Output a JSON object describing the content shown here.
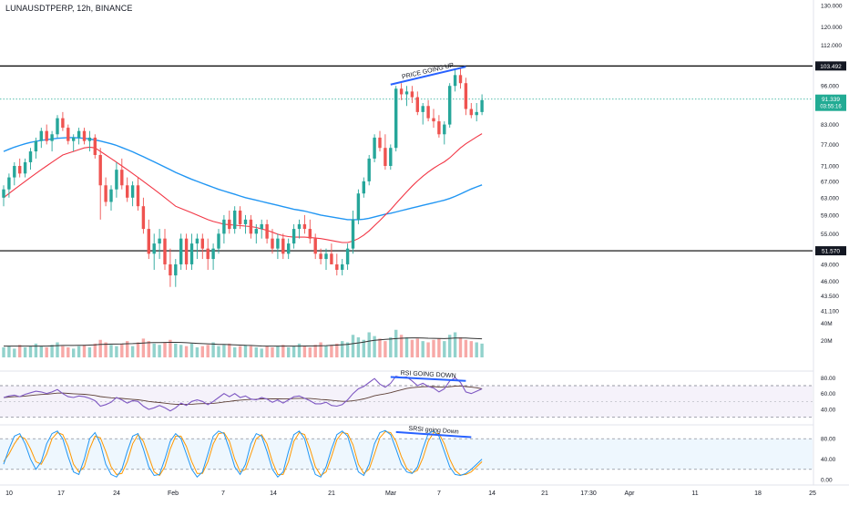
{
  "header": {
    "symbol_title": "LUNAUSDTPERP, 12h, BINANCE"
  },
  "colors": {
    "up": "#26a69a",
    "down": "#ef5350",
    "ma_short": "#f23645",
    "ma_long": "#2196f3",
    "level": "#000000",
    "annotation": "#2962ff",
    "last_price": "#22ab94",
    "rsi": "#7e57c2",
    "rsi_ma": "#5d4037",
    "stoch_k": "#2196f3",
    "stoch_d": "#ff9800",
    "volume_ma": "#333333"
  },
  "chart_data": {
    "type": "candlestick",
    "timeframe": "12h",
    "price_axis": {
      "scale": "log",
      "ticks": [
        "130.000",
        "120.000",
        "112.000",
        "103.492",
        "96.000",
        "91.339",
        "83.000",
        "77.000",
        "71.000",
        "67.000",
        "63.000",
        "59.000",
        "55.000",
        "51.570",
        "49.000",
        "46.000",
        "43.500",
        "41.100"
      ]
    },
    "price_levels": [
      {
        "label": "103.492",
        "value": 103.492
      },
      {
        "label": "51.570",
        "value": 51.57
      }
    ],
    "last_price": {
      "value": 91.339,
      "label": "91.339",
      "countdown": "03:55:16"
    },
    "x_axis": {
      "ticks": [
        "10",
        "17",
        "24",
        "Feb",
        "7",
        "14",
        "21",
        "Mar",
        "7",
        "14",
        "21",
        "17:30",
        "Apr",
        "11",
        "18",
        "25"
      ]
    },
    "candles": [
      [
        63,
        66,
        61,
        65
      ],
      [
        65,
        69,
        63,
        68
      ],
      [
        68,
        72,
        66,
        71
      ],
      [
        71,
        73,
        68,
        69
      ],
      [
        69,
        73,
        68,
        72
      ],
      [
        72,
        76,
        70,
        75
      ],
      [
        75,
        79,
        73,
        78
      ],
      [
        78,
        82,
        76,
        81
      ],
      [
        81,
        83,
        77,
        78
      ],
      [
        78,
        81,
        75,
        80
      ],
      [
        80,
        86,
        79,
        85
      ],
      [
        85,
        87,
        81,
        82
      ],
      [
        82,
        83,
        77,
        78
      ],
      [
        78,
        80,
        75,
        79
      ],
      [
        79,
        82,
        77,
        81
      ],
      [
        81,
        82,
        77,
        78
      ],
      [
        78,
        81,
        75,
        79
      ],
      [
        79,
        80,
        73,
        74
      ],
      [
        74,
        76,
        58,
        66
      ],
      [
        66,
        68,
        61,
        62
      ],
      [
        62,
        66,
        60,
        65
      ],
      [
        65,
        72,
        63,
        70
      ],
      [
        70,
        73,
        65,
        66
      ],
      [
        66,
        68,
        62,
        63
      ],
      [
        63,
        67,
        61,
        66
      ],
      [
        66,
        68,
        60,
        61
      ],
      [
        61,
        63,
        55,
        56
      ],
      [
        56,
        58,
        50,
        51
      ],
      [
        51,
        55,
        48,
        53
      ],
      [
        53,
        56,
        50,
        54
      ],
      [
        54,
        56,
        48,
        49
      ],
      [
        49,
        52,
        45,
        47
      ],
      [
        47,
        50,
        45,
        49
      ],
      [
        49,
        55,
        48,
        54
      ],
      [
        54,
        55,
        48,
        49
      ],
      [
        49,
        55,
        48,
        53
      ],
      [
        53,
        55,
        50,
        54
      ],
      [
        54,
        55,
        50,
        52
      ],
      [
        52,
        54,
        48,
        50
      ],
      [
        50,
        53,
        48,
        52
      ],
      [
        52,
        56,
        51,
        55
      ],
      [
        55,
        59,
        53,
        58
      ],
      [
        58,
        60,
        55,
        56
      ],
      [
        56,
        61,
        55,
        60
      ],
      [
        60,
        61,
        56,
        57
      ],
      [
        57,
        59,
        55,
        58
      ],
      [
        58,
        59,
        54,
        55
      ],
      [
        55,
        57,
        53,
        56
      ],
      [
        56,
        58,
        54,
        57
      ],
      [
        57,
        58,
        53,
        54
      ],
      [
        54,
        56,
        51,
        52
      ],
      [
        52,
        55,
        50,
        54
      ],
      [
        54,
        55,
        50,
        51
      ],
      [
        51,
        54,
        50,
        53
      ],
      [
        53,
        57,
        52,
        56
      ],
      [
        56,
        58,
        54,
        57
      ],
      [
        57,
        59,
        55,
        56
      ],
      [
        56,
        58,
        53,
        54
      ],
      [
        54,
        55,
        50,
        51
      ],
      [
        51,
        52,
        49,
        50
      ],
      [
        50,
        52,
        48,
        51
      ],
      [
        51,
        53,
        49,
        49
      ],
      [
        49,
        51,
        47,
        48
      ],
      [
        48,
        50,
        47,
        49
      ],
      [
        49,
        53,
        48,
        52
      ],
      [
        52,
        60,
        51,
        58
      ],
      [
        58,
        65,
        57,
        64
      ],
      [
        64,
        68,
        63,
        67
      ],
      [
        67,
        74,
        66,
        73
      ],
      [
        73,
        80,
        72,
        79
      ],
      [
        79,
        81,
        75,
        76
      ],
      [
        76,
        80,
        70,
        71
      ],
      [
        71,
        77,
        70,
        76
      ],
      [
        76,
        96,
        75,
        95
      ],
      [
        95,
        97,
        91,
        93
      ],
      [
        93,
        96,
        89,
        94
      ],
      [
        94,
        96,
        90,
        92
      ],
      [
        92,
        94,
        86,
        87
      ],
      [
        87,
        90,
        83,
        89
      ],
      [
        89,
        91,
        84,
        85
      ],
      [
        85,
        88,
        82,
        84
      ],
      [
        84,
        86,
        79,
        80
      ],
      [
        80,
        84,
        77,
        83
      ],
      [
        83,
        97,
        82,
        96
      ],
      [
        96,
        102,
        94,
        100
      ],
      [
        100,
        103,
        95,
        97
      ],
      [
        97,
        99,
        86,
        88
      ],
      [
        88,
        90,
        85,
        86
      ],
      [
        86,
        90,
        84,
        87
      ],
      [
        87,
        93,
        86,
        91
      ]
    ],
    "ma_short": [
      63,
      64,
      65,
      66,
      67,
      68,
      69,
      70,
      71,
      72,
      73,
      74,
      74.5,
      75,
      75.5,
      76,
      76.2,
      76,
      75,
      74,
      73,
      72,
      71,
      70,
      69,
      68,
      67,
      66,
      65,
      64,
      63,
      62,
      61,
      60.5,
      60,
      59.5,
      59,
      58.5,
      58,
      57.6,
      57.3,
      57,
      56.9,
      56.8,
      56.7,
      56.6,
      56.5,
      56.3,
      56,
      55.7,
      55.3,
      54.9,
      54.6,
      54.4,
      54.3,
      54.3,
      54.3,
      54.2,
      54.1,
      54,
      53.8,
      53.6,
      53.4,
      53.2,
      53.2,
      53.5,
      54,
      54.7,
      55.6,
      56.7,
      57.8,
      59,
      60.2,
      61.6,
      63,
      64.4,
      65.8,
      67.1,
      68.3,
      69.4,
      70.4,
      71.3,
      72.1,
      73.2,
      74.6,
      76,
      77.2,
      78.2,
      79.2,
      80.2
    ],
    "ma_long": [
      75,
      75.6,
      76.2,
      76.7,
      77.2,
      77.6,
      77.9,
      78.2,
      78.4,
      78.6,
      78.8,
      78.9,
      79,
      79,
      78.9,
      78.8,
      78.6,
      78.3,
      78,
      77.6,
      77.2,
      76.7,
      76.1,
      75.5,
      74.9,
      74.2,
      73.5,
      72.8,
      72.1,
      71.4,
      70.7,
      70,
      69.3,
      68.7,
      68.1,
      67.5,
      67,
      66.5,
      66,
      65.5,
      65,
      64.6,
      64.2,
      63.8,
      63.4,
      63,
      62.7,
      62.4,
      62.1,
      61.8,
      61.5,
      61.2,
      60.9,
      60.6,
      60.3,
      60.1,
      59.9,
      59.6,
      59.3,
      59,
      58.8,
      58.6,
      58.4,
      58.2,
      58,
      58,
      58,
      58.1,
      58.3,
      58.6,
      58.9,
      59.2,
      59.4,
      59.7,
      60,
      60.3,
      60.6,
      60.9,
      61.2,
      61.5,
      61.8,
      62.1,
      62.4,
      62.8,
      63.3,
      63.9,
      64.5,
      65.1,
      65.6,
      66.1
    ],
    "volume": [
      8,
      9,
      7,
      10,
      8,
      9,
      11,
      9,
      8,
      10,
      12,
      9,
      8,
      7,
      9,
      10,
      8,
      11,
      14,
      12,
      10,
      9,
      11,
      13,
      9,
      12,
      15,
      13,
      11,
      10,
      12,
      14,
      11,
      10,
      9,
      11,
      8,
      9,
      10,
      12,
      9,
      10,
      11,
      8,
      9,
      10,
      9,
      8,
      7,
      9,
      8,
      9,
      10,
      8,
      9,
      11,
      9,
      8,
      10,
      12,
      9,
      10,
      11,
      13,
      12,
      18,
      16,
      14,
      20,
      17,
      15,
      13,
      16,
      22,
      18,
      16,
      14,
      15,
      13,
      12,
      14,
      15,
      13,
      18,
      20,
      16,
      14,
      13,
      12,
      11
    ],
    "volume_ma": [
      9,
      9,
      9,
      9,
      9,
      9,
      9,
      9,
      9,
      9.2,
      9.4,
      9.5,
      9.5,
      9.5,
      9.6,
      9.7,
      9.8,
      10,
      10.3,
      10.5,
      10.6,
      10.6,
      10.7,
      10.9,
      11,
      11.2,
      11.5,
      11.7,
      11.8,
      11.8,
      11.9,
      12,
      12,
      11.9,
      11.7,
      11.5,
      11.2,
      11,
      10.8,
      10.6,
      10.4,
      10.3,
      10.2,
      10,
      9.8,
      9.6,
      9.5,
      9.3,
      9.1,
      9,
      9,
      9,
      9,
      9,
      9,
      9,
      9.1,
      9.1,
      9.2,
      9.3,
      9.4,
      9.6,
      9.8,
      10.1,
      10.4,
      11,
      11.6,
      12.2,
      13,
      13.6,
      14,
      14.3,
      14.6,
      15,
      15.3,
      15.5,
      15.6,
      15.6,
      15.5,
      15.3,
      15.2,
      15.1,
      15,
      15.2,
      15.4,
      15.5,
      15.4,
      15.2,
      15,
      14.8
    ],
    "volume_axis": {
      "ticks": [
        "40M",
        "20M"
      ]
    },
    "rsi": {
      "levels": [
        70,
        30
      ],
      "axis_ticks": [
        "80.00",
        "60.00",
        "40.00"
      ],
      "values": [
        55,
        57,
        58,
        56,
        59,
        61,
        63,
        62,
        60,
        62,
        65,
        60,
        56,
        55,
        57,
        56,
        54,
        51,
        44,
        46,
        49,
        55,
        52,
        48,
        51,
        50,
        44,
        40,
        42,
        45,
        42,
        38,
        42,
        48,
        45,
        50,
        52,
        50,
        46,
        50,
        55,
        60,
        56,
        60,
        55,
        57,
        53,
        52,
        55,
        53,
        49,
        52,
        48,
        52,
        56,
        57,
        54,
        51,
        47,
        47,
        49,
        45,
        44,
        46,
        52,
        60,
        66,
        69,
        74,
        79,
        72,
        68,
        73,
        82,
        80,
        81,
        76,
        70,
        73,
        69,
        67,
        62,
        66,
        76,
        80,
        74,
        62,
        60,
        63,
        66
      ],
      "ma": [
        55,
        55.5,
        56,
        56.3,
        56.8,
        57.5,
        58.2,
        58.8,
        59.2,
        59.8,
        60.5,
        60.6,
        60.2,
        59.7,
        59.4,
        59,
        58.3,
        57.5,
        56.2,
        55.3,
        54.6,
        54.3,
        53.8,
        53.1,
        52.6,
        52.1,
        51.2,
        50,
        49.2,
        48.6,
        47.9,
        47,
        46.5,
        46.4,
        46.2,
        46.5,
        47,
        47.3,
        47.3,
        47.6,
        48.3,
        49.3,
        50,
        51,
        51.6,
        52.2,
        52.6,
        52.8,
        53.3,
        53.5,
        53.3,
        53.4,
        53.2,
        53.3,
        53.7,
        54,
        54,
        53.7,
        53.1,
        52.5,
        52.1,
        51.4,
        50.7,
        50.2,
        50.2,
        50.8,
        51.9,
        53.3,
        55.1,
        57.2,
        58.6,
        59.7,
        61.1,
        63,
        64.7,
        66.4,
        67.5,
        68,
        68.6,
        68.8,
        68.9,
        68.3,
        68,
        68.6,
        69.4,
        69.6,
        68.9,
        68.2,
        67.4,
        66
      ]
    },
    "stoch_rsi": {
      "levels": [
        80,
        20
      ],
      "axis_ticks": [
        "80.00",
        "40.00",
        "0.00"
      ],
      "k": [
        30,
        60,
        85,
        90,
        70,
        40,
        20,
        35,
        70,
        90,
        95,
        80,
        45,
        15,
        10,
        40,
        80,
        92,
        70,
        30,
        10,
        5,
        20,
        55,
        85,
        90,
        60,
        25,
        8,
        10,
        40,
        75,
        90,
        80,
        50,
        20,
        5,
        15,
        50,
        85,
        95,
        90,
        60,
        25,
        10,
        30,
        70,
        90,
        85,
        55,
        20,
        5,
        15,
        55,
        88,
        95,
        80,
        40,
        10,
        5,
        25,
        60,
        88,
        95,
        85,
        50,
        15,
        8,
        30,
        70,
        92,
        96,
        88,
        60,
        30,
        15,
        12,
        25,
        60,
        90,
        95,
        85,
        55,
        25,
        10,
        8,
        12,
        20,
        30,
        40
      ],
      "d": [
        35,
        50,
        70,
        85,
        80,
        60,
        35,
        30,
        50,
        80,
        92,
        88,
        65,
        30,
        15,
        25,
        60,
        85,
        82,
        55,
        25,
        10,
        12,
        35,
        70,
        88,
        75,
        45,
        15,
        8,
        25,
        60,
        85,
        85,
        65,
        35,
        12,
        12,
        35,
        70,
        90,
        92,
        75,
        40,
        15,
        20,
        50,
        80,
        88,
        70,
        35,
        10,
        10,
        35,
        75,
        92,
        88,
        60,
        25,
        8,
        15,
        45,
        78,
        92,
        90,
        68,
        30,
        12,
        20,
        50,
        82,
        94,
        92,
        75,
        45,
        22,
        13,
        18,
        42,
        75,
        92,
        90,
        70,
        40,
        18,
        9,
        10,
        15,
        25,
        35
      ]
    },
    "annotations": [
      {
        "panel": "price",
        "text": "PRICE GOING UP"
      },
      {
        "panel": "rsi",
        "text": "RSI GOING DOWN"
      },
      {
        "panel": "stoch_rsi",
        "text": "SRSI going Down"
      }
    ]
  }
}
